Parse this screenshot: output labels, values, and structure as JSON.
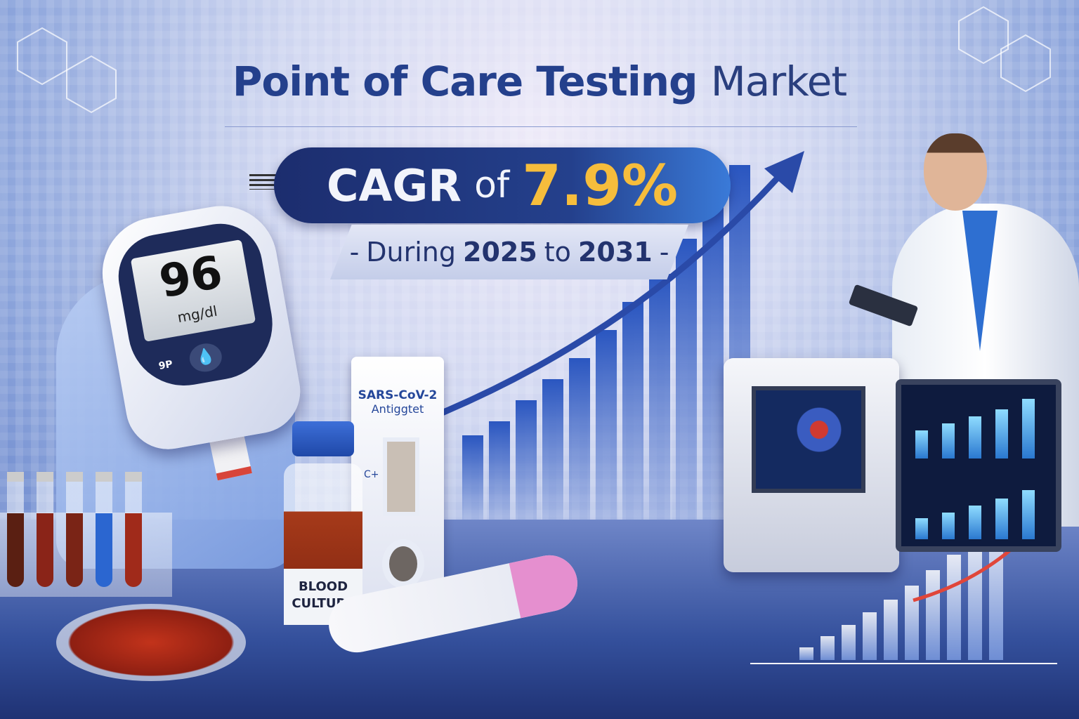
{
  "title": {
    "bold": "Point of Care Testing",
    "light": "Market"
  },
  "cagr": {
    "prefix": "CAGR",
    "of": "of",
    "value": "7.9%"
  },
  "period": {
    "dash_left": "-",
    "during": "During",
    "start_year": "2025",
    "to": "to",
    "end_year": "2031",
    "dash_right": "-"
  },
  "glucose_meter": {
    "reading": "96",
    "unit": "mg/dl",
    "button_code": "9P"
  },
  "test_cassette": {
    "line1": "SARS-CoV-2",
    "line2": "Antiggtet",
    "marks": "C+"
  },
  "bottle_label": {
    "line1": "BLOOD",
    "line2": "CULTURE"
  },
  "colors": {
    "title": "#24408c",
    "pill": "#1c2d6e",
    "cagr_value": "#f6bd3c",
    "arrow": "#2a4aa8",
    "red_arrow": "#e0463a"
  },
  "icons": [
    "growth-arrow-icon",
    "molecule-hexagon-icon",
    "blood-drop-icon"
  ]
}
